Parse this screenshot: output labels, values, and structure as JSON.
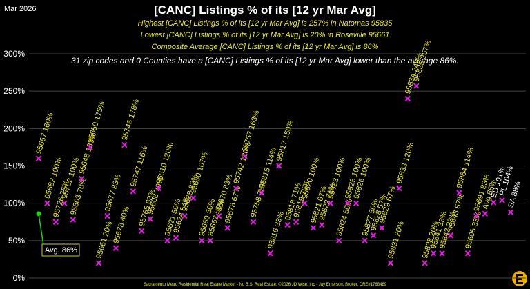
{
  "chart_data": {
    "type": "scatter",
    "date": "Mar 2026",
    "title": "[CANC] Listings % of its [12 yr Mar Avg]",
    "subtitles": [
      "Highest [CANC] Listings % of its [12 yr Mar Avg] is 257% in Natomas 95835",
      "Lowest [CANC] Listings % of its [12 yr Mar Avg] is 20% in Roseville 95661",
      "Composite Average [CANC] Listings % of its [12 yr Mar Avg] is 86%"
    ],
    "note": "31 zip codes and 0 Counties have a [CANC] Listings % of its [12 yr Mar Avg] lower than the average 86%.",
    "footer": "Sacramento Metro Residential Real Estate Market - No B.S. Real Estate, ©2026 JD Wise, Inc - Jay Emerson, Broker, DRE#1768489",
    "categories": [
      "95667",
      "95682",
      "95726",
      "95762",
      "95603",
      "95648",
      "95650",
      "95661",
      "95677",
      "95678",
      "95746",
      "95747",
      "95765",
      "95608",
      "95610",
      "95621",
      "95624",
      "95628",
      "95630",
      "95660",
      "95662",
      "95670",
      "95673",
      "95742",
      "95757",
      "95758",
      "95815",
      "95816",
      "95817",
      "95818",
      "95819",
      "95820",
      "95821",
      "95822",
      "95823",
      "95824",
      "95825",
      "95826",
      "95827",
      "95828",
      "95829",
      "95831",
      "95833",
      "95834",
      "95835",
      "95838",
      "95841",
      "95842",
      "95843",
      "95864",
      "95605",
      "95691",
      "Avg",
      "ED",
      "PL",
      "SA"
    ],
    "values": [
      160,
      100,
      75,
      100,
      78,
      133,
      175,
      20,
      83,
      40,
      178,
      116,
      63,
      79,
      120,
      50,
      54,
      83,
      107,
      50,
      50,
      83,
      67,
      120,
      163,
      75,
      114,
      33,
      150,
      71,
      75,
      100,
      67,
      71,
      100,
      50,
      100,
      100,
      50,
      57,
      67,
      20,
      120,
      240,
      257,
      20,
      33,
      33,
      57,
      114,
      33,
      83,
      86,
      101,
      104,
      88
    ],
    "value_labels": [
      "160%",
      "100%",
      "75%",
      "100%",
      "78%",
      "133%",
      "175%",
      "20%",
      "83%",
      "40%",
      "178%",
      "116%",
      "63%",
      "79%",
      "120%",
      "50%",
      "54%",
      "83%",
      "107%",
      "50%",
      "50%",
      "83%",
      "67%",
      "120%",
      "163%",
      "75%",
      "114%",
      "33%",
      "150%",
      "71%",
      "75%",
      "100%",
      "67%",
      "71%",
      "100%",
      "50%",
      "100%",
      "100%",
      "50%",
      "57%",
      "67%",
      "20%",
      "120%",
      "240%",
      "257%",
      "20%",
      "33%",
      "33%",
      "57%",
      "114%",
      "33%",
      "83%",
      "86%",
      "101%",
      "104%",
      "88%"
    ],
    "color": "#e020e0",
    "label_colors": [
      "#e8e830",
      "#e8e830",
      "#e8e830",
      "#e8e830",
      "#e8e830",
      "#e8e830",
      "#e8e830",
      "#e8e830",
      "#e8e830",
      "#e8e830",
      "#e8e830",
      "#e8e830",
      "#e8e830",
      "#e8e830",
      "#e8e830",
      "#e8e830",
      "#e8e830",
      "#e8e830",
      "#e8e830",
      "#e8e830",
      "#e8e830",
      "#e8e830",
      "#e8e830",
      "#e8e830",
      "#e8e830",
      "#e8e830",
      "#e8e830",
      "#e8e830",
      "#e8e830",
      "#e8e830",
      "#e8e830",
      "#e8e830",
      "#e8e830",
      "#e8e830",
      "#e8e830",
      "#e8e830",
      "#e8e830",
      "#e8e830",
      "#e8e830",
      "#e8e830",
      "#e8e830",
      "#e8e830",
      "#e8e830",
      "#e8e830",
      "#e8e830",
      "#e8e830",
      "#e8e830",
      "#e8e830",
      "#e8e830",
      "#e8e830",
      "#e8e830",
      "#e8e830",
      "#e8e830",
      "#ffffff",
      "#ffffff",
      "#ffffff"
    ],
    "avg_marker": {
      "value": 86,
      "label": "Avg, 86%",
      "color": "#22cc22"
    },
    "ylim": [
      0,
      300
    ],
    "yticks": [
      {
        "value": 0,
        "label": "0%"
      },
      {
        "value": 50,
        "label": "50%"
      },
      {
        "value": 100,
        "label": "100%"
      },
      {
        "value": 150,
        "label": "150%"
      },
      {
        "value": 200,
        "label": "200%"
      },
      {
        "value": 250,
        "label": "250%"
      },
      {
        "value": 300,
        "label": "300%"
      }
    ],
    "grid": true
  }
}
